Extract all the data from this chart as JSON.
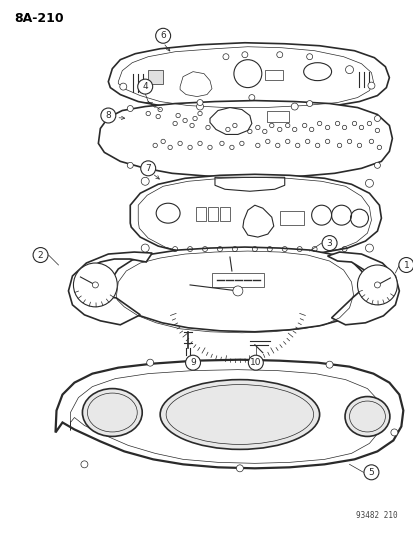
{
  "title": "8A-210",
  "footnote": "93482 210",
  "bg_color": "#ffffff",
  "line_color": "#2a2a2a",
  "label_color": "#000000",
  "figsize": [
    4.14,
    5.33
  ],
  "dpi": 100
}
